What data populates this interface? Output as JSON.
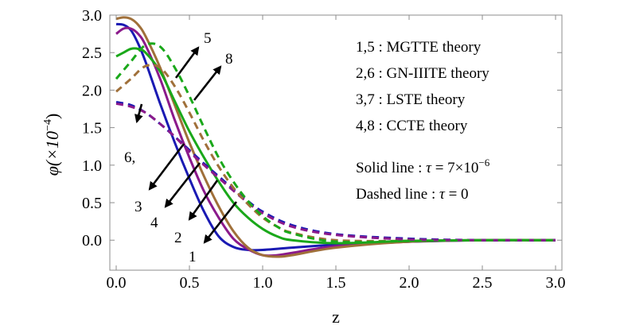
{
  "chart_data": {
    "type": "line",
    "xlabel": "z",
    "ylabel": "φ(×10",
    "ylabel_exp": "−4",
    "ylabel_close": ")",
    "xlim": [
      0,
      3.0
    ],
    "ylim": [
      -0.4,
      3.0
    ],
    "xticks": [
      "0.0",
      "0.5",
      "1.0",
      "1.5",
      "2.0",
      "2.5",
      "3.0"
    ],
    "xtick_values": [
      0,
      0.5,
      1.0,
      1.5,
      2.0,
      2.5,
      3.0
    ],
    "yticks": [
      "0.0",
      "0.5",
      "1.0",
      "1.5",
      "2.0",
      "2.5",
      "3.0"
    ],
    "ytick_values": [
      0,
      0.5,
      1.0,
      1.5,
      2.0,
      2.5,
      3.0
    ],
    "grid": false,
    "legend": [
      {
        "prefix": "1,5 : MGTTE theory"
      },
      {
        "prefix": "2,6 : GN-IIITE theory"
      },
      {
        "prefix": "3,7 : LSTE theory"
      },
      {
        "prefix": "4,8 : CCTE theory"
      },
      {
        "prefix": "Solid line : ",
        "sym": "τ",
        "suffix": " = 7×10",
        "sup": "−6"
      },
      {
        "prefix": "Dashed line : ",
        "sym": "τ",
        "suffix": " = 0",
        "sup": ""
      }
    ],
    "curve_labels": [
      "5",
      "8",
      "6,",
      "3",
      "4",
      "2",
      "1"
    ],
    "series": [
      {
        "color": "#1a1ab3",
        "style": "solid",
        "x": [
          0,
          0.05,
          0.1,
          0.15,
          0.2,
          0.3,
          0.4,
          0.5,
          0.6,
          0.7,
          0.8,
          0.9,
          1.0,
          1.2,
          1.5,
          2.0,
          2.5,
          3.0
        ],
        "y": [
          2.88,
          2.87,
          2.8,
          2.62,
          2.38,
          1.82,
          1.3,
          0.82,
          0.38,
          0.05,
          -0.09,
          -0.13,
          -0.13,
          -0.1,
          -0.06,
          -0.02,
          0.0,
          0.0
        ]
      },
      {
        "color": "#8b1a8b",
        "style": "solid",
        "x": [
          0,
          0.05,
          0.1,
          0.15,
          0.2,
          0.3,
          0.4,
          0.5,
          0.6,
          0.7,
          0.8,
          0.9,
          1.0,
          1.1,
          1.2,
          1.5,
          2.0,
          2.5,
          3.0
        ],
        "y": [
          2.75,
          2.82,
          2.82,
          2.75,
          2.6,
          2.15,
          1.6,
          1.1,
          0.65,
          0.3,
          0.02,
          -0.12,
          -0.2,
          -0.2,
          -0.17,
          -0.08,
          -0.02,
          0.0,
          0.0
        ]
      },
      {
        "color": "#a0703a",
        "style": "solid",
        "x": [
          0,
          0.05,
          0.1,
          0.15,
          0.2,
          0.3,
          0.4,
          0.5,
          0.6,
          0.7,
          0.8,
          0.9,
          1.0,
          1.1,
          1.2,
          1.5,
          2.0,
          2.5,
          3.0
        ],
        "y": [
          2.95,
          2.97,
          2.95,
          2.87,
          2.72,
          2.3,
          1.8,
          1.3,
          0.85,
          0.45,
          0.12,
          -0.1,
          -0.2,
          -0.22,
          -0.2,
          -0.1,
          -0.02,
          0.0,
          0.0
        ]
      },
      {
        "color": "#1aa81a",
        "style": "solid",
        "x": [
          0,
          0.05,
          0.1,
          0.15,
          0.2,
          0.3,
          0.4,
          0.5,
          0.6,
          0.7,
          0.8,
          0.9,
          1.0,
          1.1,
          1.2,
          1.5,
          2.0,
          2.5,
          3.0
        ],
        "y": [
          2.45,
          2.5,
          2.55,
          2.55,
          2.5,
          2.25,
          1.85,
          1.45,
          1.1,
          0.78,
          0.5,
          0.3,
          0.15,
          0.05,
          0.0,
          -0.04,
          -0.01,
          0.0,
          0.0
        ]
      },
      {
        "color": "#1a1ab3",
        "style": "dashed",
        "x": [
          0,
          0.1,
          0.2,
          0.3,
          0.4,
          0.5,
          0.6,
          0.7,
          0.8,
          0.9,
          1.0,
          1.2,
          1.5,
          2.0,
          2.5,
          3.0
        ],
        "y": [
          1.84,
          1.8,
          1.7,
          1.55,
          1.38,
          1.2,
          1.02,
          0.85,
          0.68,
          0.52,
          0.38,
          0.2,
          0.08,
          0.02,
          0.0,
          0.0
        ]
      },
      {
        "color": "#8b1a8b",
        "style": "dashed",
        "x": [
          0,
          0.1,
          0.2,
          0.3,
          0.4,
          0.5,
          0.6,
          0.7,
          0.8,
          0.9,
          1.0,
          1.2,
          1.5,
          2.0,
          2.5,
          3.0
        ],
        "y": [
          1.82,
          1.78,
          1.7,
          1.55,
          1.38,
          1.18,
          1.0,
          0.83,
          0.66,
          0.5,
          0.36,
          0.18,
          0.07,
          0.01,
          0.0,
          0.0
        ]
      },
      {
        "color": "#a0703a",
        "style": "dashed",
        "x": [
          0,
          0.1,
          0.2,
          0.3,
          0.4,
          0.5,
          0.6,
          0.7,
          0.8,
          0.9,
          1.0,
          1.1,
          1.2,
          1.5,
          2.0,
          2.5,
          3.0
        ],
        "y": [
          1.98,
          2.15,
          2.32,
          2.3,
          2.05,
          1.7,
          1.32,
          0.98,
          0.7,
          0.48,
          0.3,
          0.18,
          0.1,
          0.0,
          -0.01,
          0.0,
          0.0
        ]
      },
      {
        "color": "#1aa81a",
        "style": "dashed",
        "x": [
          0,
          0.1,
          0.2,
          0.3,
          0.4,
          0.5,
          0.6,
          0.7,
          0.8,
          0.9,
          1.0,
          1.1,
          1.2,
          1.5,
          2.0,
          2.5,
          3.0
        ],
        "y": [
          2.15,
          2.38,
          2.6,
          2.58,
          2.3,
          1.92,
          1.5,
          1.1,
          0.78,
          0.52,
          0.32,
          0.18,
          0.09,
          -0.02,
          -0.01,
          0.0,
          0.0
        ]
      }
    ]
  }
}
